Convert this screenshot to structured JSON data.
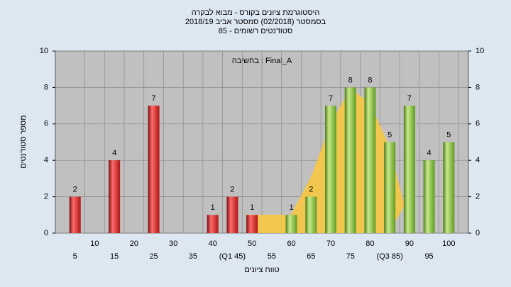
{
  "chart_data": {
    "type": "bar",
    "title": "היסטוגרמת ציונים בקורס - מבוא לבקרה",
    "subtitle": "בסמסטר  (02/2018)  סמסטר אביב 2018/19",
    "subtitle2": "סטודנטים רשומים - 85",
    "annotation": "בחשיבה : Final_A",
    "x_label": "טווח ציונים",
    "y_label": "מספר סטודנטים",
    "categories": [
      "5",
      "10",
      "15",
      "20",
      "25",
      "30",
      "35",
      "40",
      "(Q1 45)",
      "50",
      "55",
      "60",
      "65",
      "70",
      "75",
      "80",
      "(Q3 85)",
      "90",
      "95",
      "100"
    ],
    "values": [
      2,
      null,
      4,
      null,
      7,
      null,
      null,
      1,
      2,
      1,
      null,
      1,
      2,
      7,
      8,
      8,
      5,
      7,
      4,
      5
    ],
    "bar_colors": [
      "#e8292a",
      "#e8292a",
      "#e8292a",
      "#e8292a",
      "#e8292a",
      "#e8292a",
      "#e8292a",
      "#e8292a",
      "#e8292a",
      "#e8292a",
      "#8dc63f",
      "#8dc63f",
      "#8dc63f",
      "#8dc63f",
      "#8dc63f",
      "#8dc63f",
      "#8dc63f",
      "#8dc63f",
      "#8dc63f",
      "#8dc63f"
    ],
    "ylim": [
      0,
      10
    ],
    "yticks": [
      0,
      2,
      4,
      6,
      8,
      10
    ],
    "y2lim": [
      0,
      10
    ],
    "y2ticks": [
      0,
      2,
      4,
      6,
      8,
      10
    ],
    "grid": true
  }
}
